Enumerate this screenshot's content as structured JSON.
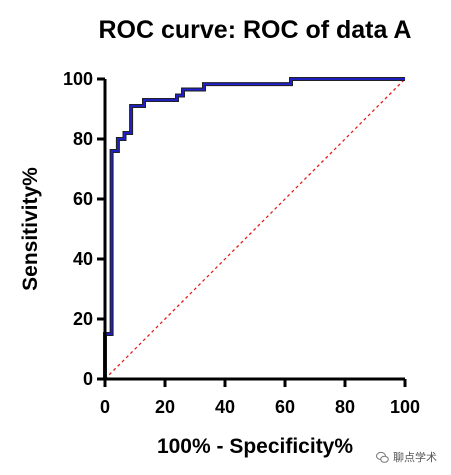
{
  "chart_data": {
    "type": "line",
    "title": "ROC curve: ROC of data A",
    "xlabel": "100% - Specificity%",
    "ylabel": "Sensitivity%",
    "xlim": [
      0,
      100
    ],
    "ylim": [
      0,
      100
    ],
    "xticks": [
      "0",
      "20",
      "40",
      "60",
      "80",
      "100"
    ],
    "yticks": [
      "0",
      "20",
      "40",
      "60",
      "80",
      "100"
    ],
    "grid": false,
    "series": [
      {
        "color": "#1f1fd6",
        "x": [
          0,
          0,
          2.2,
          2.2,
          4.3,
          4.3,
          6.5,
          6.5,
          8.7,
          8.7,
          13,
          13,
          24,
          24,
          26,
          26,
          33,
          33,
          62,
          62,
          100
        ],
        "y": [
          0,
          15,
          15,
          76,
          76,
          80,
          80,
          82,
          82,
          91,
          91,
          93,
          93,
          94.5,
          94.5,
          96.5,
          96.5,
          98.3,
          98.3,
          100,
          100
        ]
      }
    ],
    "reference_line": {
      "x": [
        0,
        100
      ],
      "y": [
        0,
        100
      ],
      "color": "#e0201b",
      "style": "dashed"
    }
  },
  "watermark": {
    "text": "聊点学术"
  }
}
